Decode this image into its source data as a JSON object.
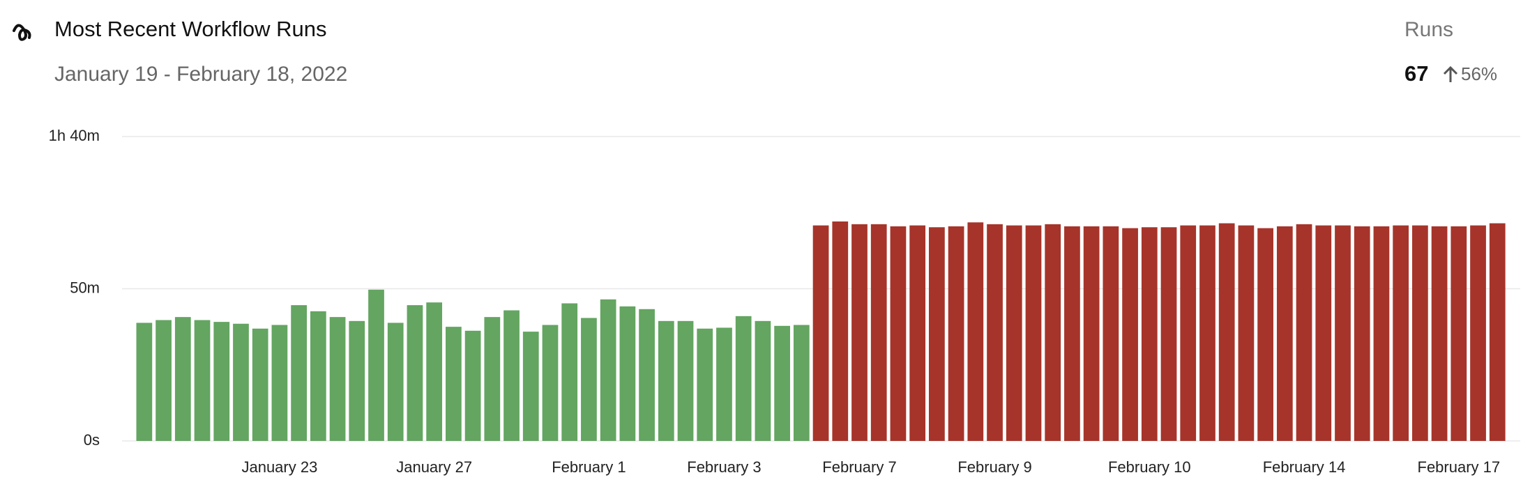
{
  "chart_data": {
    "type": "bar",
    "title": "Most Recent Workflow Runs",
    "subtitle": "January 19 - February 18, 2022",
    "summary_label": "Runs",
    "summary_value": 67,
    "summary_change": {
      "value": 56,
      "label": "56%"
    },
    "categories": [
      null,
      null,
      null,
      null,
      null,
      null,
      null,
      "January 23",
      null,
      null,
      null,
      null,
      null,
      null,
      null,
      "January 27",
      null,
      null,
      null,
      null,
      null,
      null,
      null,
      "February 1",
      null,
      null,
      null,
      null,
      null,
      null,
      "February 3",
      null,
      null,
      null,
      null,
      null,
      null,
      "February 7",
      null,
      null,
      null,
      null,
      null,
      null,
      "February 9",
      null,
      null,
      null,
      null,
      null,
      null,
      null,
      "February 10",
      null,
      null,
      null,
      null,
      null,
      null,
      null,
      "February 14",
      null,
      null,
      null,
      null,
      null,
      null,
      null,
      "February 17",
      null,
      null
    ],
    "values": [
      38.8,
      39.7,
      40.7,
      39.7,
      39.1,
      38.5,
      36.9,
      38.1,
      44.6,
      42.6,
      40.7,
      39.4,
      49.7,
      38.8,
      44.6,
      45.5,
      37.5,
      36.2,
      40.7,
      42.9,
      35.9,
      38.1,
      45.2,
      40.4,
      46.5,
      44.2,
      43.3,
      39.4,
      39.4,
      36.9,
      37.2,
      41.0,
      39.4,
      37.8,
      38.1,
      70.8,
      72.1,
      71.2,
      71.2,
      70.5,
      70.8,
      70.2,
      70.5,
      71.8,
      71.2,
      70.8,
      70.8,
      71.2,
      70.5,
      70.5,
      70.5,
      69.9,
      70.2,
      70.2,
      70.8,
      70.8,
      71.5,
      70.8,
      69.9,
      70.5,
      71.2,
      70.8,
      70.8,
      70.5,
      70.5,
      70.8,
      70.8,
      70.5,
      70.5,
      70.8,
      71.5
    ],
    "colors": [
      "#63a561",
      "#63a561",
      "#63a561",
      "#63a561",
      "#63a561",
      "#63a561",
      "#63a561",
      "#63a561",
      "#63a561",
      "#63a561",
      "#63a561",
      "#63a561",
      "#63a561",
      "#63a561",
      "#63a561",
      "#63a561",
      "#63a561",
      "#63a561",
      "#63a561",
      "#63a561",
      "#63a561",
      "#63a561",
      "#63a561",
      "#63a561",
      "#63a561",
      "#63a561",
      "#63a561",
      "#63a561",
      "#63a561",
      "#63a561",
      "#63a561",
      "#63a561",
      "#63a561",
      "#63a561",
      "#63a561",
      "#a6342a",
      "#a6342a",
      "#a6342a",
      "#a6342a",
      "#a6342a",
      "#a6342a",
      "#a6342a",
      "#a6342a",
      "#a6342a",
      "#a6342a",
      "#a6342a",
      "#a6342a",
      "#a6342a",
      "#a6342a",
      "#a6342a",
      "#a6342a",
      "#a6342a",
      "#a6342a",
      "#a6342a",
      "#a6342a",
      "#a6342a",
      "#a6342a",
      "#a6342a",
      "#a6342a",
      "#a6342a",
      "#a6342a",
      "#a6342a",
      "#a6342a",
      "#a6342a",
      "#a6342a",
      "#a6342a",
      "#a6342a",
      "#a6342a",
      "#a6342a",
      "#a6342a",
      "#a6342a"
    ],
    "ylim": [
      0,
      100
    ],
    "yticks": [
      {
        "value": 0,
        "label": "0s"
      },
      {
        "value": 50,
        "label": "50m"
      },
      {
        "value": 100,
        "label": "1h 40m"
      }
    ],
    "grid": true
  }
}
